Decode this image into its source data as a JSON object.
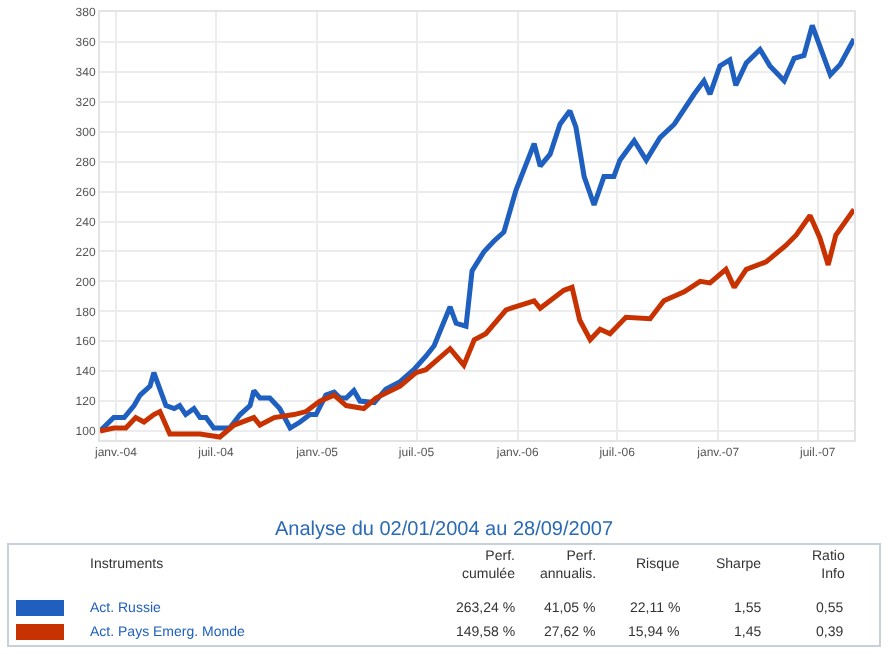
{
  "chart_data": {
    "type": "line",
    "title": "Analyse du 02/01/2004 au 28/09/2007",
    "xlim": [
      "2003-12-03",
      "2007-09-05"
    ],
    "xticks": [
      {
        "value": "2004-01-01",
        "label": "janv.-04"
      },
      {
        "value": "2004-07-01",
        "label": "juil.-04"
      },
      {
        "value": "2005-01-01",
        "label": "janv.-05"
      },
      {
        "value": "2005-07-01",
        "label": "juil.-05"
      },
      {
        "value": "2006-01-01",
        "label": "janv.-06"
      },
      {
        "value": "2006-07-01",
        "label": "juil.-06"
      },
      {
        "value": "2007-01-01",
        "label": "janv.-07"
      },
      {
        "value": "2007-07-01",
        "label": "juil.-07"
      }
    ],
    "ylim": [
      94,
      380
    ],
    "yticks": [
      100,
      120,
      140,
      160,
      180,
      200,
      220,
      240,
      260,
      280,
      300,
      320,
      340,
      360,
      380
    ],
    "grid": true,
    "legend": "bottom left",
    "line_style": "solid",
    "series": [
      {
        "name": "Act. Russie",
        "color": "#1f5fbf",
        "x": [
          "2003-12-03",
          "2003-12-28",
          "2004-01-16",
          "2004-02-03",
          "2004-02-14",
          "2004-03-03",
          "2004-03-10",
          "2004-04-01",
          "2004-04-16",
          "2004-04-26",
          "2004-05-07",
          "2004-05-22",
          "2004-06-02",
          "2004-06-13",
          "2004-06-27",
          "2004-07-16",
          "2004-07-26",
          "2004-08-14",
          "2004-09-01",
          "2004-09-08",
          "2004-09-19",
          "2004-10-07",
          "2004-10-25",
          "2004-11-13",
          "2004-12-01",
          "2004-12-19",
          "2004-12-30",
          "2005-01-17",
          "2005-02-01",
          "2005-02-12",
          "2005-02-23",
          "2005-03-09",
          "2005-03-20",
          "2005-04-15",
          "2005-05-06",
          "2005-06-01",
          "2005-06-26",
          "2005-07-18",
          "2005-08-02",
          "2005-08-31",
          "2005-09-11",
          "2005-09-29",
          "2005-10-10",
          "2005-11-01",
          "2005-11-19",
          "2005-12-07",
          "2005-12-29",
          "2006-01-31",
          "2006-02-11",
          "2006-03-01",
          "2006-03-19",
          "2006-04-06",
          "2006-04-17",
          "2006-05-02",
          "2006-05-20",
          "2006-06-07",
          "2006-06-25",
          "2006-07-06",
          "2006-08-01",
          "2006-08-23",
          "2006-09-17",
          "2006-10-13",
          "2006-11-18",
          "2006-12-06",
          "2006-12-17",
          "2007-01-04",
          "2007-01-22",
          "2007-02-02",
          "2007-02-21",
          "2007-03-18",
          "2007-04-05",
          "2007-05-01",
          "2007-05-19",
          "2007-06-06",
          "2007-06-21",
          "2007-07-05",
          "2007-07-24",
          "2007-08-11",
          "2007-09-05"
        ],
        "values": [
          100,
          109,
          109,
          117,
          124,
          130,
          139,
          117,
          115,
          117,
          111,
          115,
          109,
          109,
          102,
          102,
          102,
          111,
          117,
          127,
          122,
          122,
          115,
          102,
          106,
          111,
          111,
          124,
          126,
          122,
          122,
          127,
          120,
          119,
          128,
          133,
          141,
          150,
          157,
          183,
          172,
          170,
          207,
          220,
          227,
          233,
          261,
          292,
          277,
          285,
          305,
          314,
          303,
          270,
          251,
          270,
          270,
          281,
          294,
          281,
          296,
          305,
          325,
          334,
          325,
          344,
          348,
          331,
          346,
          355,
          344,
          334,
          349,
          351,
          371,
          357,
          338,
          345,
          362
        ]
      },
      {
        "name": "Act. Pays Emerg. Monde",
        "color": "#c83200",
        "x": [
          "2003-12-03",
          "2003-12-28",
          "2004-01-19",
          "2004-02-06",
          "2004-02-21",
          "2004-03-10",
          "2004-03-21",
          "2004-04-08",
          "2004-04-19",
          "2004-06-02",
          "2004-07-08",
          "2004-08-03",
          "2004-09-08",
          "2004-09-19",
          "2004-10-15",
          "2004-11-20",
          "2004-12-12",
          "2005-01-06",
          "2005-02-01",
          "2005-02-23",
          "2005-03-27",
          "2005-04-18",
          "2005-06-01",
          "2005-06-30",
          "2005-07-18",
          "2005-08-31",
          "2005-09-25",
          "2005-10-14",
          "2005-11-04",
          "2005-12-11",
          "2006-01-31",
          "2006-02-11",
          "2006-03-26",
          "2006-04-10",
          "2006-04-24",
          "2006-05-13",
          "2006-05-31",
          "2006-06-18",
          "2006-07-17",
          "2006-08-30",
          "2006-09-24",
          "2006-10-31",
          "2006-11-29",
          "2006-12-17",
          "2007-01-15",
          "2007-01-30",
          "2007-02-21",
          "2007-03-29",
          "2007-05-04",
          "2007-05-23",
          "2007-06-17",
          "2007-07-05",
          "2007-07-20",
          "2007-08-03",
          "2007-09-05"
        ],
        "values": [
          100,
          102,
          102,
          109,
          106,
          111,
          113,
          98,
          98,
          98,
          96,
          104,
          109,
          104,
          109,
          111,
          113,
          120,
          124,
          117,
          115,
          122,
          130,
          139,
          141,
          155,
          144,
          161,
          165,
          181,
          187,
          182,
          194,
          196,
          174,
          161,
          168,
          165,
          176,
          175,
          187,
          193,
          200,
          199,
          208,
          196,
          208,
          213,
          224,
          231,
          244,
          229,
          211,
          231,
          248
        ]
      }
    ],
    "annotations": [
      "Instruments",
      "Perf.\ncumulée",
      "Perf.\nannualis.",
      "Risque",
      "Sharpe",
      "Ratio\nInfo",
      "263,24 %",
      "41,05 %",
      "22,11 %",
      "1,55",
      "0,55",
      "149,58 %",
      "27,62 %",
      "15,94 %",
      "1,45",
      "0,39"
    ]
  }
}
